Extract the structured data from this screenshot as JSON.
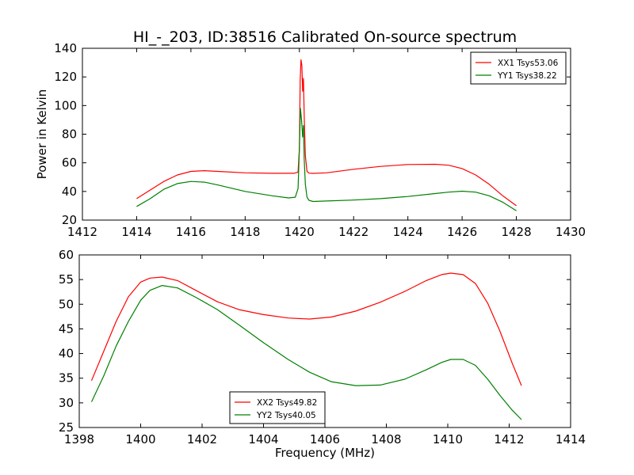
{
  "figure": {
    "title": "HI_-_203, ID:38516 Calibrated On-source spectrum"
  },
  "colors": {
    "xx": "#ff0000",
    "yy": "#008000"
  },
  "chart_data": [
    {
      "type": "line",
      "panel": "top",
      "xlabel": "",
      "ylabel": "Power in Kelvin",
      "xlim": [
        1412,
        1430
      ],
      "ylim": [
        20,
        140
      ],
      "xticks": [
        1412,
        1414,
        1416,
        1418,
        1420,
        1422,
        1424,
        1426,
        1428,
        1430
      ],
      "yticks": [
        20,
        40,
        60,
        80,
        100,
        120,
        140
      ],
      "legend_position": "top-right",
      "series": [
        {
          "name": "XX1 Tsys53.06",
          "color": "#ff0000",
          "x": [
            1414,
            1414.5,
            1415,
            1415.5,
            1416,
            1416.5,
            1417,
            1418,
            1419,
            1419.8,
            1419.95,
            1420.0,
            1420.03,
            1420.06,
            1420.09,
            1420.12,
            1420.15,
            1420.18,
            1420.22,
            1420.28,
            1420.35,
            1420.5,
            1421,
            1422,
            1423,
            1424,
            1425,
            1425.5,
            1426,
            1426.5,
            1427,
            1427.5,
            1428
          ],
          "y": [
            35,
            41,
            47,
            51.5,
            54,
            54.5,
            54,
            53,
            52.7,
            52.7,
            53.5,
            70,
            118,
            132,
            128,
            110,
            119,
            92,
            65,
            54,
            52.8,
            52.6,
            53,
            55.5,
            57.5,
            58.8,
            59,
            58.3,
            56,
            51.5,
            45,
            37,
            30
          ]
        },
        {
          "name": "YY1 Tsys38.22",
          "color": "#008000",
          "x": [
            1414,
            1414.5,
            1415,
            1415.5,
            1416,
            1416.5,
            1417,
            1418,
            1419,
            1419.6,
            1419.85,
            1419.95,
            1420.0,
            1420.04,
            1420.08,
            1420.12,
            1420.15,
            1420.18,
            1420.22,
            1420.28,
            1420.35,
            1420.5,
            1421,
            1422,
            1423,
            1424,
            1425,
            1425.5,
            1426,
            1426.5,
            1427,
            1427.5,
            1428
          ],
          "y": [
            29.5,
            35,
            41.5,
            45.5,
            47,
            46.5,
            44.5,
            40,
            37,
            35.5,
            36,
            42,
            70,
            98,
            90,
            78,
            86,
            62,
            45,
            36,
            33.8,
            33,
            33.3,
            34,
            35,
            36.5,
            38.5,
            39.5,
            40.2,
            39.5,
            37,
            32.5,
            26.5
          ]
        }
      ]
    },
    {
      "type": "line",
      "panel": "bottom",
      "xlabel": "Frequency (MHz)",
      "ylabel": "",
      "xlim": [
        1398,
        1414
      ],
      "ylim": [
        25,
        60
      ],
      "xticks": [
        1398,
        1400,
        1402,
        1404,
        1406,
        1408,
        1410,
        1412,
        1414
      ],
      "yticks": [
        25,
        30,
        35,
        40,
        45,
        50,
        55,
        60
      ],
      "legend_position": "lower-center",
      "series": [
        {
          "name": "XX2 Tsys49.82",
          "color": "#ff0000",
          "x": [
            1398.4,
            1398.8,
            1399.2,
            1399.6,
            1400.0,
            1400.3,
            1400.7,
            1401.2,
            1401.8,
            1402.5,
            1403.2,
            1404.0,
            1404.8,
            1405.5,
            1406.2,
            1407.0,
            1407.8,
            1408.6,
            1409.3,
            1409.8,
            1410.1,
            1410.5,
            1410.9,
            1411.3,
            1411.7,
            1412.1,
            1412.4
          ],
          "y": [
            34.5,
            40.5,
            46.5,
            51.5,
            54.5,
            55.3,
            55.5,
            54.8,
            52.8,
            50.5,
            48.9,
            47.9,
            47.2,
            47.0,
            47.4,
            48.6,
            50.4,
            52.6,
            54.8,
            56.0,
            56.3,
            56.0,
            54.2,
            50.2,
            44.5,
            38.0,
            33.5
          ]
        },
        {
          "name": "YY2 Tsys40.05",
          "color": "#008000",
          "x": [
            1398.4,
            1398.8,
            1399.2,
            1399.6,
            1400.0,
            1400.3,
            1400.7,
            1401.2,
            1401.8,
            1402.5,
            1403.2,
            1404.0,
            1404.8,
            1405.5,
            1406.2,
            1407.0,
            1407.8,
            1408.6,
            1409.3,
            1409.8,
            1410.1,
            1410.5,
            1410.9,
            1411.3,
            1411.7,
            1412.1,
            1412.4
          ],
          "y": [
            30.2,
            35.5,
            41.5,
            46.5,
            50.8,
            52.8,
            53.8,
            53.3,
            51.4,
            48.9,
            45.8,
            42.2,
            38.8,
            36.2,
            34.3,
            33.5,
            33.6,
            34.8,
            36.7,
            38.2,
            38.8,
            38.8,
            37.6,
            34.8,
            31.5,
            28.5,
            26.6
          ]
        }
      ]
    }
  ]
}
